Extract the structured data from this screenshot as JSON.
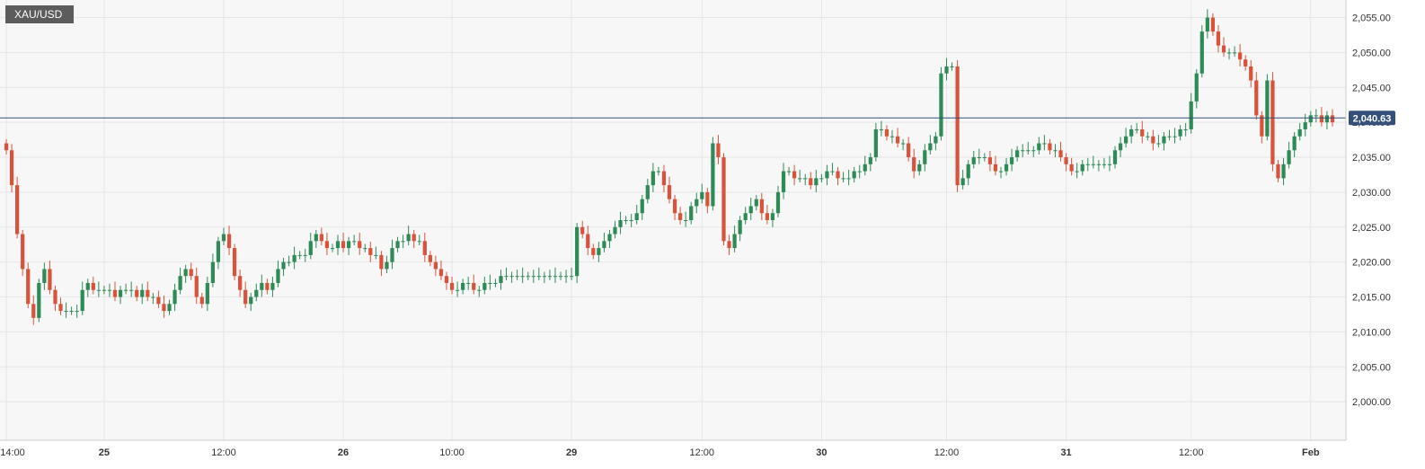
{
  "symbol": "XAU/USD",
  "last_price_label": "2,040.63",
  "colors": {
    "up": "#2e8b57",
    "down": "#d9533c",
    "grid": "#e6e6e6",
    "price_line": "#34507a",
    "plot_bg": "#f7f7f7"
  },
  "chart_data": {
    "type": "candlestick",
    "symbol": "XAU/USD",
    "ylim": [
      1995,
      2057
    ],
    "y_ticks": [
      2000,
      2005,
      2010,
      2015,
      2020,
      2025,
      2030,
      2035,
      2040,
      2045,
      2050,
      2055
    ],
    "y_tick_labels": [
      "2,000.00",
      "2,005.00",
      "2,010.00",
      "2,015.00",
      "2,020.00",
      "2,025.00",
      "2,030.00",
      "2,035.00",
      "2,040.00",
      "2,045.00",
      "2,050.00",
      "2,055.00"
    ],
    "x_labels": [
      {
        "label": "14:00",
        "bold": false,
        "pos": 0
      },
      {
        "label": "25",
        "bold": true,
        "pos": 18
      },
      {
        "label": "12:00",
        "bold": false,
        "pos": 40
      },
      {
        "label": "26",
        "bold": true,
        "pos": 62
      },
      {
        "label": "10:00",
        "bold": false,
        "pos": 82
      },
      {
        "label": "29",
        "bold": true,
        "pos": 104
      },
      {
        "label": "12:00",
        "bold": false,
        "pos": 128
      },
      {
        "label": "30",
        "bold": true,
        "pos": 150
      },
      {
        "label": "12:00",
        "bold": false,
        "pos": 173
      },
      {
        "label": "31",
        "bold": true,
        "pos": 195
      },
      {
        "label": "12:00",
        "bold": false,
        "pos": 218
      },
      {
        "label": "Feb",
        "bold": true,
        "pos": 240
      }
    ],
    "last_price": 2040.63,
    "closes": [
      2036,
      2031,
      2024,
      2019,
      2014,
      2012,
      2017,
      2019,
      2016,
      2014,
      2013,
      2013,
      2013,
      2013,
      2016,
      2017,
      2016,
      2016,
      2016,
      2016,
      2015,
      2016,
      2016,
      2016,
      2015,
      2016,
      2015,
      2015,
      2014,
      2013,
      2014,
      2016,
      2018,
      2019,
      2018,
      2015,
      2014,
      2017,
      2020,
      2023,
      2024,
      2022,
      2018,
      2016,
      2014,
      2015,
      2016,
      2017,
      2016,
      2017,
      2019,
      2020,
      2020,
      2021,
      2021,
      2021,
      2023,
      2024,
      2023,
      2022,
      2022,
      2023,
      2022,
      2023,
      2023,
      2022,
      2022,
      2021,
      2021,
      2019,
      2020,
      2022,
      2023,
      2023,
      2024,
      2023,
      2023,
      2021,
      2020,
      2019,
      2018,
      2017,
      2016,
      2016,
      2017,
      2017,
      2016,
      2016,
      2017,
      2017,
      2017,
      2018,
      2018,
      2018,
      2018,
      2018,
      2018,
      2018,
      2018,
      2018,
      2018,
      2018,
      2018,
      2018,
      2018,
      2025,
      2024,
      2022,
      2021,
      2022,
      2023,
      2024,
      2025,
      2026,
      2026,
      2026,
      2027,
      2029,
      2031,
      2033,
      2033,
      2031,
      2029,
      2027,
      2026,
      2026,
      2028,
      2029,
      2030,
      2028,
      2037,
      2035,
      2023,
      2022,
      2024,
      2026,
      2027,
      2028,
      2029,
      2027,
      2026,
      2027,
      2030,
      2033,
      2033,
      2032,
      2032,
      2032,
      2031,
      2032,
      2032,
      2033,
      2033,
      2032,
      2032,
      2032,
      2033,
      2033,
      2034,
      2035,
      2039,
      2039,
      2038,
      2038,
      2037,
      2037,
      2035,
      2033,
      2034,
      2036,
      2037,
      2038,
      2047,
      2048,
      2048,
      2031,
      2032,
      2034,
      2035,
      2035,
      2035,
      2034,
      2033,
      2033,
      2034,
      2035,
      2036,
      2036,
      2036,
      2036,
      2037,
      2037,
      2036,
      2036,
      2035,
      2034,
      2033,
      2033,
      2034,
      2034,
      2034,
      2034,
      2034,
      2034,
      2036,
      2037,
      2038,
      2039,
      2039,
      2038,
      2038,
      2037,
      2037,
      2038,
      2038,
      2038,
      2039,
      2039,
      2043,
      2047,
      2053,
      2055,
      2053,
      2051,
      2050,
      2050,
      2050,
      2049,
      2048,
      2046,
      2041,
      2038,
      2046,
      2034,
      2032,
      2034,
      2036,
      2038,
      2039,
      2040,
      2041,
      2041,
      2040,
      2041,
      2040
    ]
  }
}
